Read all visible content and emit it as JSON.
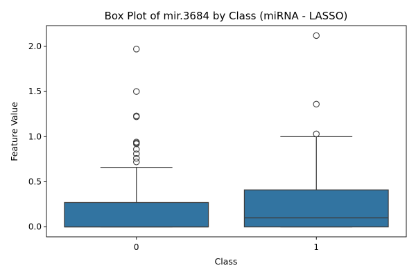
{
  "chart_data": {
    "type": "box",
    "title": "Box Plot of mir.3684 by Class (miRNA - LASSO)",
    "xlabel": "Class",
    "ylabel": "Feature Value",
    "categories": [
      "0",
      "1"
    ],
    "ylim": [
      -0.11,
      2.23
    ],
    "yticks": [
      0.0,
      0.5,
      1.0,
      1.5,
      2.0
    ],
    "ytick_labels": [
      "0.0",
      "0.5",
      "1.0",
      "1.5",
      "2.0"
    ],
    "box_color": "#3274a1",
    "edge_color": "#3d3d3d",
    "boxes": [
      {
        "category": "0",
        "whisker_low": 0.0,
        "q1": 0.0,
        "median": 0.0,
        "q3": 0.27,
        "whisker_high": 0.66,
        "outliers": [
          1.97,
          1.5,
          1.23,
          1.22,
          0.94,
          0.93,
          0.92,
          0.86,
          0.81,
          0.76,
          0.72
        ]
      },
      {
        "category": "1",
        "whisker_low": 0.0,
        "q1": 0.0,
        "median": 0.1,
        "q3": 0.41,
        "whisker_high": 1.0,
        "outliers": [
          2.12,
          1.36,
          1.03
        ]
      }
    ]
  }
}
